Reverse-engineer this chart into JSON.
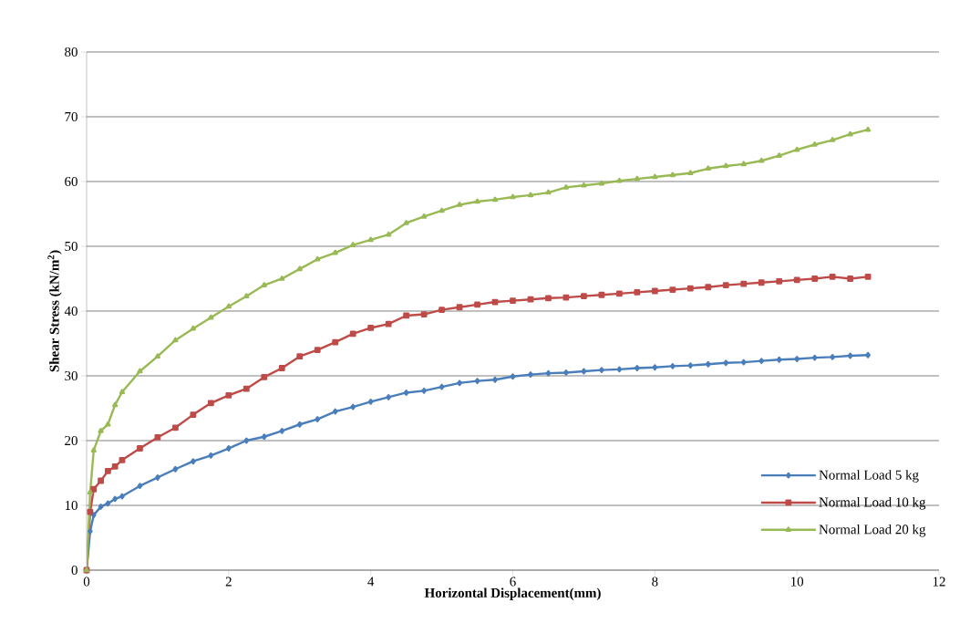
{
  "chart_data": {
    "type": "line",
    "xlabel": "Horizontal Displacement(mm)",
    "ylabel": "Shear Stress (kN/m$^{2}$)",
    "x": [
      0,
      0.05,
      0.1,
      0.2,
      0.3,
      0.4,
      0.5,
      0.75,
      1,
      1.25,
      1.5,
      1.75,
      2,
      2.25,
      2.5,
      2.75,
      3,
      3.25,
      3.5,
      3.75,
      4,
      4.25,
      4.5,
      4.75,
      5,
      5.25,
      5.5,
      5.75,
      6,
      6.25,
      6.5,
      6.75,
      7,
      7.25,
      7.5,
      7.75,
      8,
      8.25,
      8.5,
      8.75,
      9,
      9.25,
      9.5,
      9.75,
      10,
      10.25,
      10.5,
      10.75,
      11
    ],
    "series": [
      {
        "name": "Normal Load 5 kg",
        "color": "#4a7ebb",
        "marker": "diamond",
        "values": [
          0,
          6,
          8.5,
          9.8,
          10.3,
          11,
          11.4,
          13,
          14.3,
          15.6,
          16.8,
          17.7,
          18.8,
          20,
          20.6,
          21.5,
          22.5,
          23.3,
          24.5,
          25.2,
          26,
          26.7,
          27.4,
          27.7,
          28.3,
          28.9,
          29.2,
          29.4,
          29.9,
          30.2,
          30.4,
          30.5,
          30.7,
          30.9,
          31,
          31.2,
          31.3,
          31.5,
          31.6,
          31.8,
          32,
          32.1,
          32.3,
          32.5,
          32.6,
          32.8,
          32.9,
          33.1,
          33.2
        ]
      },
      {
        "name": "Normal Load 10 kg",
        "color": "#be4b48",
        "marker": "square",
        "values": [
          0,
          9,
          12.5,
          13.8,
          15.3,
          16,
          17,
          18.8,
          20.5,
          22,
          24,
          25.8,
          27,
          28,
          29.8,
          31.2,
          33,
          34,
          35.2,
          36.5,
          37.4,
          38,
          39.3,
          39.5,
          40.2,
          40.6,
          41,
          41.4,
          41.6,
          41.8,
          42,
          42.1,
          42.3,
          42.5,
          42.7,
          42.9,
          43.1,
          43.3,
          43.5,
          43.7,
          44,
          44.2,
          44.4,
          44.6,
          44.8,
          45,
          45.3,
          45,
          45.3
        ]
      },
      {
        "name": "Normal Load 20 kg",
        "color": "#98b954",
        "marker": "triangle",
        "values": [
          0,
          12,
          18.5,
          21.5,
          22.5,
          25.5,
          27.5,
          30.7,
          33,
          35.5,
          37.3,
          39,
          40.7,
          42.3,
          44,
          45,
          46.5,
          48,
          49,
          50.2,
          51,
          51.8,
          53.6,
          54.6,
          55.5,
          56.4,
          56.9,
          57.2,
          57.6,
          57.9,
          58.3,
          59.1,
          59.4,
          59.7,
          60.1,
          60.4,
          60.7,
          61,
          61.3,
          62,
          62.4,
          62.7,
          63.2,
          64,
          64.9,
          65.7,
          66.4,
          67.3,
          68
        ]
      }
    ],
    "xlim": [
      0,
      12
    ],
    "xticks": [
      0,
      2,
      4,
      6,
      8,
      10,
      12
    ],
    "ylim": [
      0,
      80
    ],
    "yticks": [
      0,
      10,
      20,
      30,
      40,
      50,
      60,
      70,
      80
    ],
    "grid": "y",
    "legend": "bottom right",
    "line_style": "solid"
  }
}
